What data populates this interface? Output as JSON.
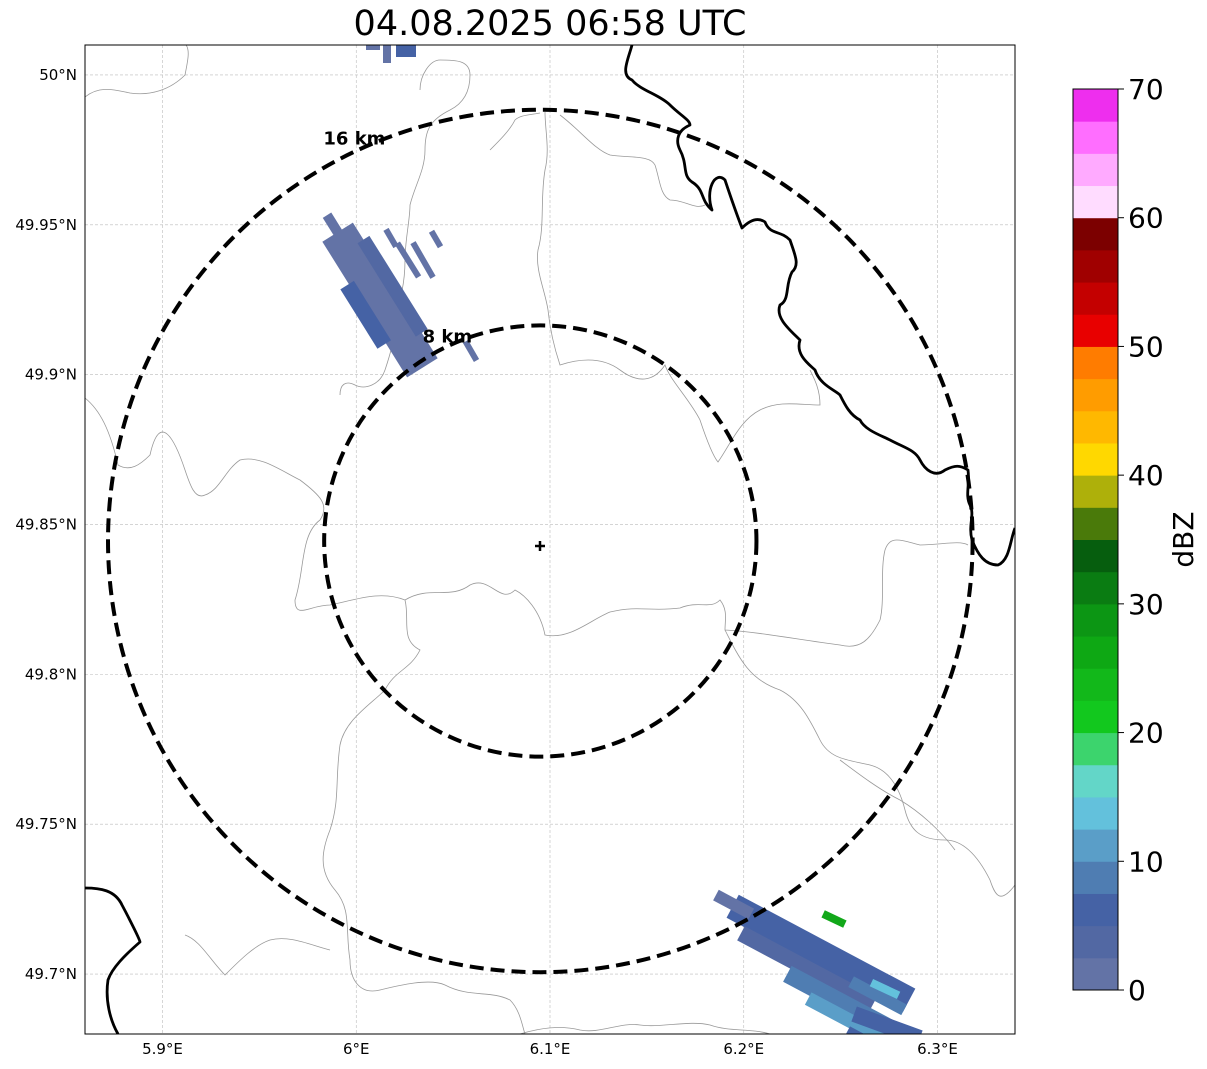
{
  "title": "04.08.2025 06:58 UTC",
  "map": {
    "lon_range": [
      5.86,
      6.34
    ],
    "lat_range": [
      49.68,
      50.01
    ],
    "x_ticks": [
      {
        "value": 5.9,
        "label": "5.9°E"
      },
      {
        "value": 6.0,
        "label": "6°E"
      },
      {
        "value": 6.1,
        "label": "6.1°E"
      },
      {
        "value": 6.2,
        "label": "6.2°E"
      },
      {
        "value": 6.3,
        "label": "6.3°E"
      }
    ],
    "y_ticks": [
      {
        "value": 50.0,
        "label": "50°N"
      },
      {
        "value": 49.95,
        "label": "49.95°N"
      },
      {
        "value": 49.9,
        "label": "49.9°N"
      },
      {
        "value": 49.85,
        "label": "49.85°N"
      },
      {
        "value": 49.8,
        "label": "49.8°N"
      },
      {
        "value": 49.75,
        "label": "49.75°N"
      },
      {
        "value": 49.7,
        "label": "49.7°N"
      }
    ],
    "grid": true,
    "radar_center": {
      "lon": 6.095,
      "lat": 49.8445
    },
    "range_rings": [
      {
        "radius_km": 8,
        "label": "8 km"
      },
      {
        "radius_km": 16,
        "label": "16 km"
      }
    ]
  },
  "colorbar": {
    "label": "dBZ",
    "min": 0,
    "max": 70,
    "tick_labels": [
      "0",
      "10",
      "20",
      "30",
      "40",
      "50",
      "60",
      "70"
    ],
    "colors": [
      "#6373a6",
      "#5268a3",
      "#4562a5",
      "#4f7db2",
      "#5a9ec8",
      "#63c1dc",
      "#63d6c8",
      "#3cd46d",
      "#12c81e",
      "#12b81a",
      "#0ea814",
      "#0c9614",
      "#0a7c12",
      "#065e0e",
      "#4a7a0a",
      "#aeb00a",
      "#ffd800",
      "#ffb800",
      "#ff9c00",
      "#ff7c00",
      "#e80000",
      "#c40000",
      "#a00000",
      "#7c0000",
      "#ffdcff",
      "#ffaaff",
      "#ff6eff",
      "#ee2eee"
    ]
  },
  "echo_colors": {
    "weak_a": "#6373a6",
    "weak_b": "#4562a5",
    "mid": "#5a9ec8",
    "green": "#12a81a"
  }
}
